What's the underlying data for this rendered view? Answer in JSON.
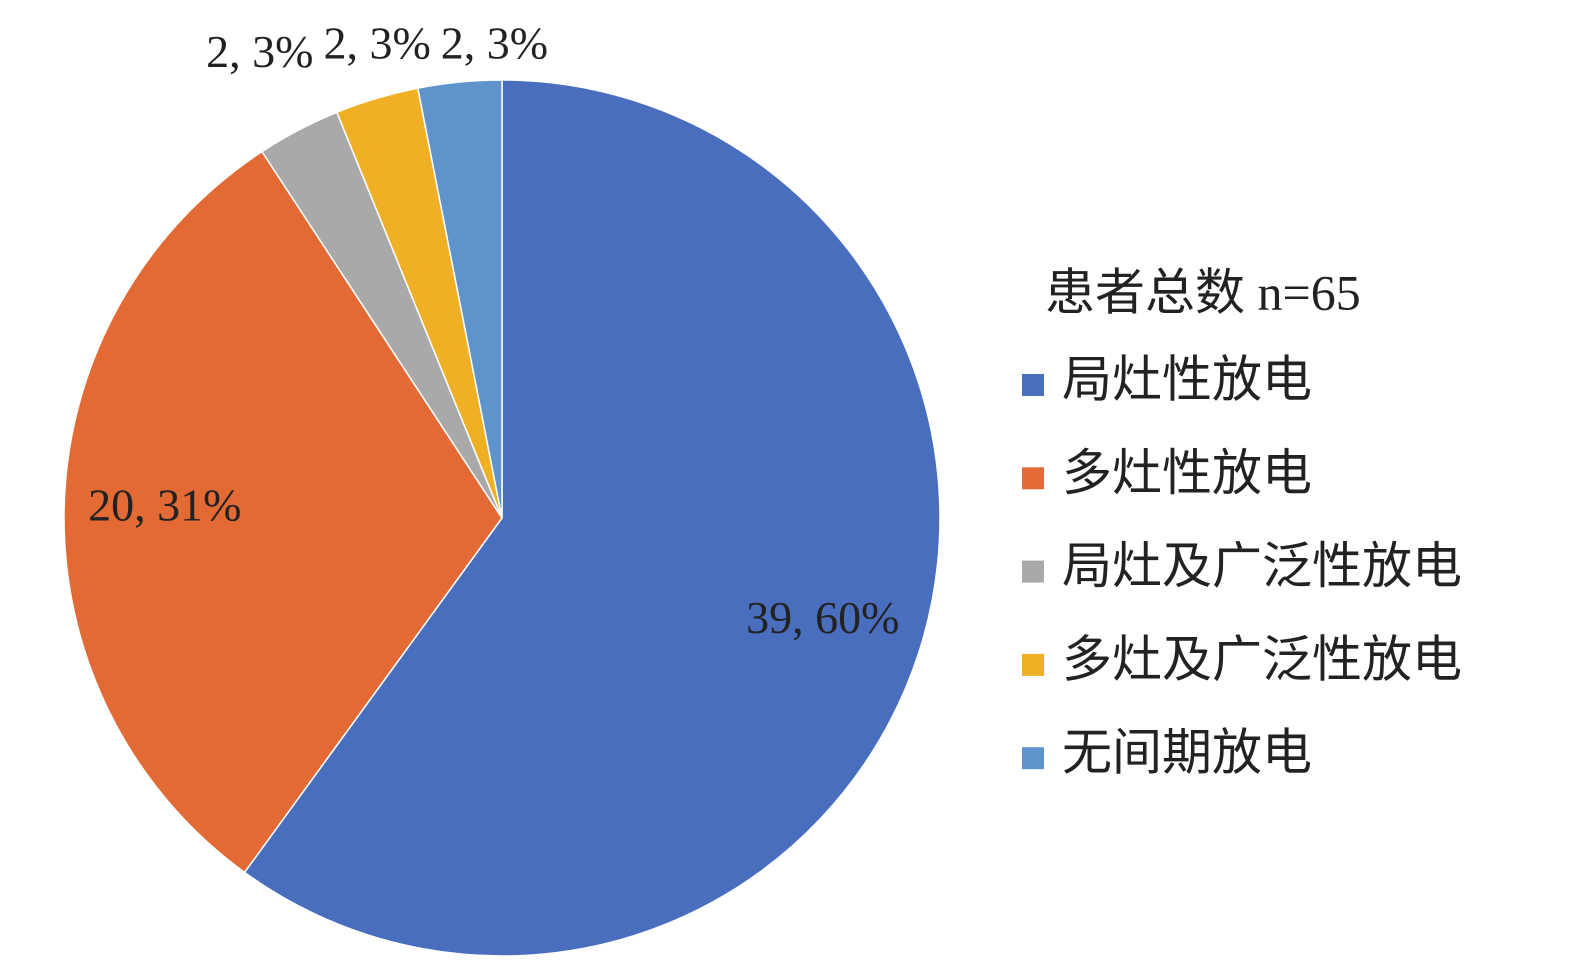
{
  "chart_data": {
    "type": "pie",
    "legend_title": "患者总数 n=65",
    "categories": [
      "局灶性放电",
      "多灶性放电",
      "局灶及广泛性放电",
      "多灶及广泛性放电",
      "无间期放电"
    ],
    "values": [
      39,
      20,
      2,
      2,
      2
    ],
    "value_labels": [
      "39, 60%",
      "20, 31%",
      "2, 3%",
      "2, 3%",
      "2, 3%"
    ],
    "colors": [
      "#4a6ebe",
      "#e36a35",
      "#a9a9a9",
      "#f0b026",
      "#5f93cc"
    ],
    "legend": "right"
  }
}
